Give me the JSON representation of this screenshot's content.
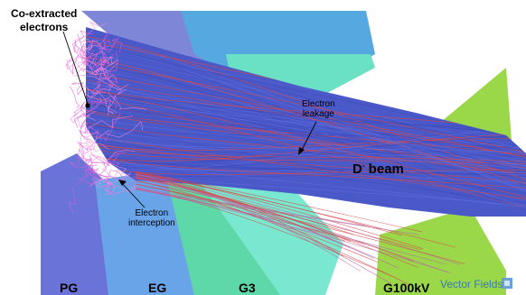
{
  "labels": {
    "co_extracted_line1": "Co-extracted",
    "co_extracted_line2": "electrons",
    "electron_leakage_line1": "Electron",
    "electron_leakage_line2": "leakage",
    "electron_interception_line1": "Electron",
    "electron_interception_line2": "interception",
    "beam": "D",
    "beam_superscript": "-",
    "beam_suffix": " beam",
    "pg": "PG",
    "eg": "EG",
    "g3": "G3",
    "g100": "G100kV",
    "logo": "Vector Fields"
  },
  "colors": {
    "beam_blue": "#4a58c8",
    "electron_pink": "#e05ad8",
    "electrode_cyan": "#62dcc8",
    "electrode_blue": "#6a98e8",
    "g100_green": "#9ad84a",
    "leakage_red": "#d84848"
  }
}
